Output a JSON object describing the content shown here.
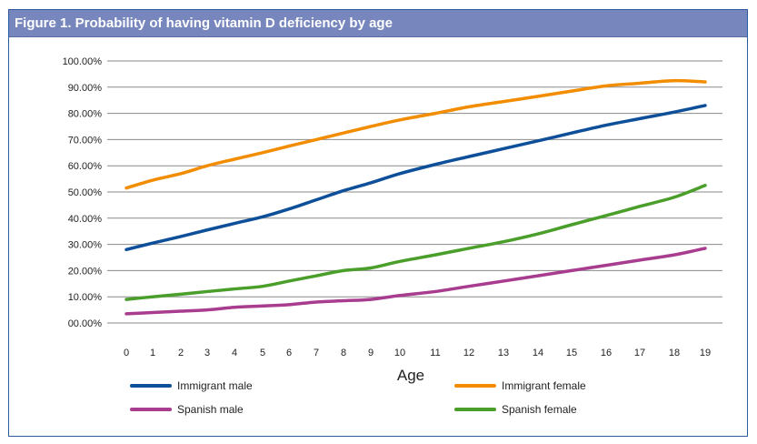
{
  "title": "Figure 1. Probability of having vitamin D deficiency by age",
  "chart_data": {
    "type": "line",
    "title": "Figure 1. Probability of having vitamin D deficiency by age",
    "xlabel": "Age",
    "ylabel": "",
    "x": [
      0,
      1,
      2,
      3,
      4,
      5,
      6,
      7,
      8,
      9,
      10,
      11,
      12,
      13,
      14,
      15,
      16,
      17,
      18,
      19
    ],
    "ylim": [
      0,
      100
    ],
    "y_ticks": [
      "00.00%",
      "10.00%",
      "20.00%",
      "30.00%",
      "40.00%",
      "50.00%",
      "60.00%",
      "70.00%",
      "80.00%",
      "90.00%",
      "100.00%"
    ],
    "grid": "horizontal",
    "legend": "bottom",
    "series": [
      {
        "name": "Immigrant male",
        "color": "#0e4f9a",
        "values": [
          28,
          30.5,
          33,
          35.5,
          38,
          40.5,
          43.5,
          47,
          50.5,
          53.5,
          57,
          60.5,
          63.5,
          66.5,
          69.5,
          72.5,
          75.5,
          78,
          80.5,
          83
        ]
      },
      {
        "name": "Immigrant female",
        "color": "#f28c00",
        "values": [
          51.5,
          54.5,
          57,
          60,
          62.5,
          65,
          67.5,
          70,
          72.5,
          75,
          77.5,
          80,
          82.5,
          84.5,
          86.5,
          88.5,
          90.5,
          91.5,
          92.5,
          92
        ]
      },
      {
        "name": "Spanish male",
        "color": "#a83c8f",
        "values": [
          3.5,
          4,
          4.5,
          5,
          6,
          6.5,
          7,
          8,
          8.5,
          9,
          10.5,
          12,
          14,
          16,
          18,
          20,
          22,
          24,
          26,
          28.5
        ]
      },
      {
        "name": "Spanish female",
        "color": "#4a9e2a",
        "values": [
          9,
          10,
          11,
          12,
          13,
          14,
          16,
          18,
          20,
          21,
          23.5,
          26,
          28.5,
          31,
          34,
          37.5,
          41,
          44.5,
          48,
          52.5
        ]
      }
    ]
  }
}
